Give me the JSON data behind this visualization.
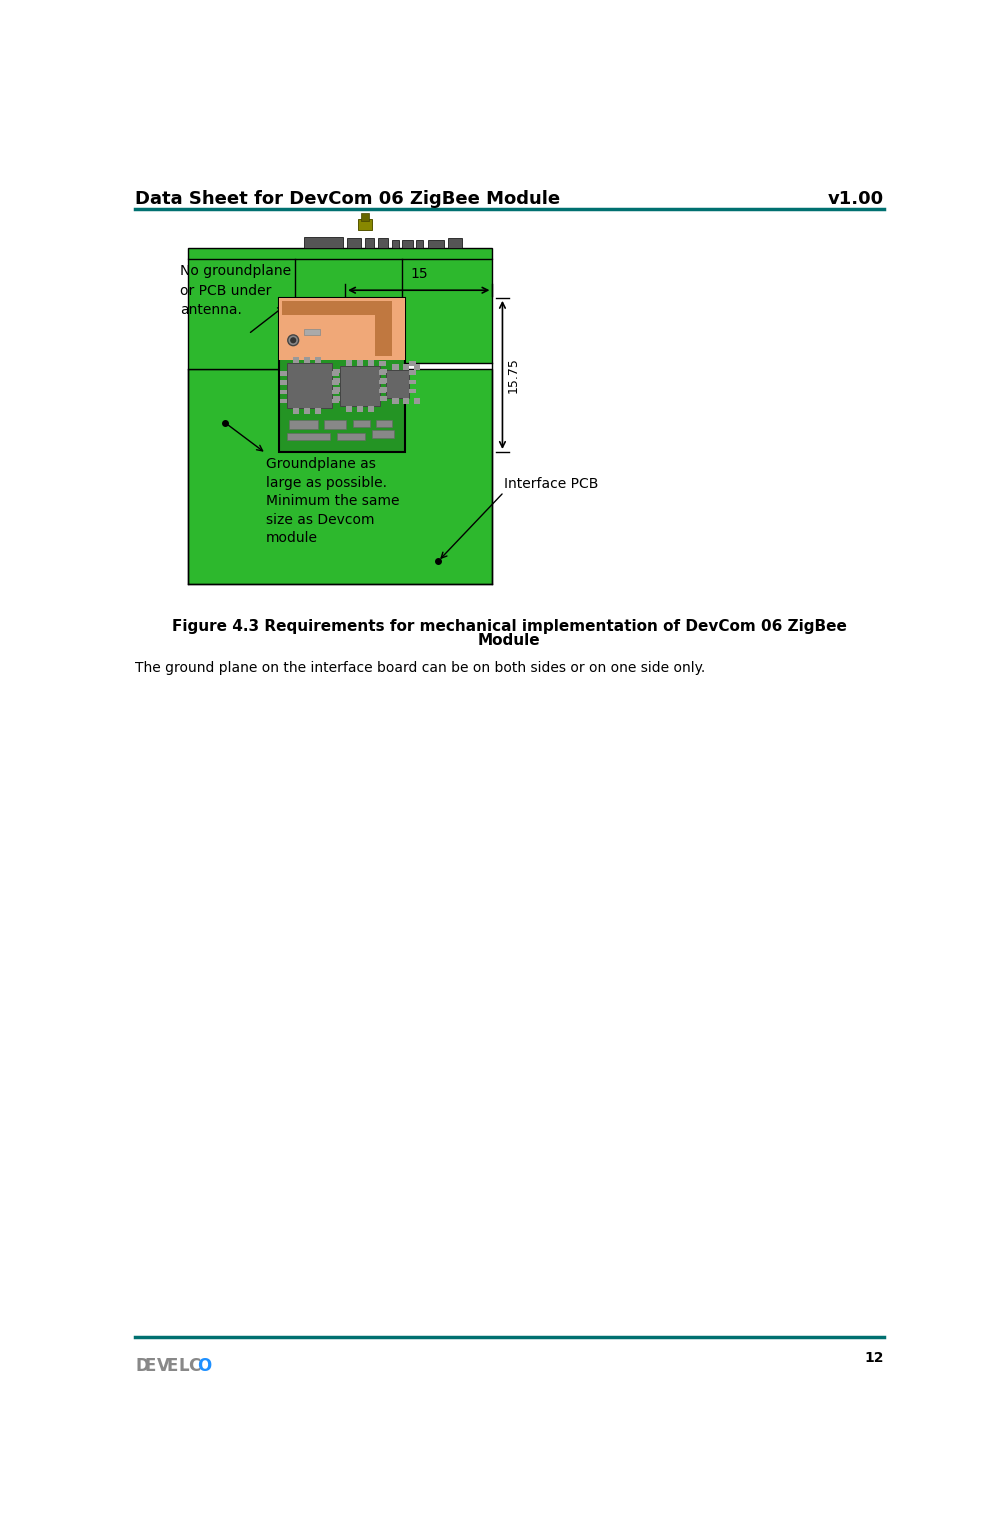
{
  "page_title_left": "Data Sheet for DevCom 06 ZigBee Module",
  "page_title_right": "v1.00",
  "header_line_color": "#007070",
  "footer_line_color": "#007070",
  "page_number": "12",
  "figure_caption_line1": "Figure 4.3 Requirements for mechanical implementation of DevCom 06 ZigBee",
  "figure_caption_line2": "Module",
  "body_text": "The ground plane on the interface board can be on both sides or on one side only.",
  "green_color": "#2db82d",
  "green_dark": "#1a8a1a",
  "green_module": "#228B22",
  "orange_color": "#F0A878",
  "gray_chip": "#777777",
  "gray_light": "#aaaaaa",
  "dark_gray": "#444444",
  "black": "#000000",
  "white": "#ffffff",
  "teal": "#007070"
}
